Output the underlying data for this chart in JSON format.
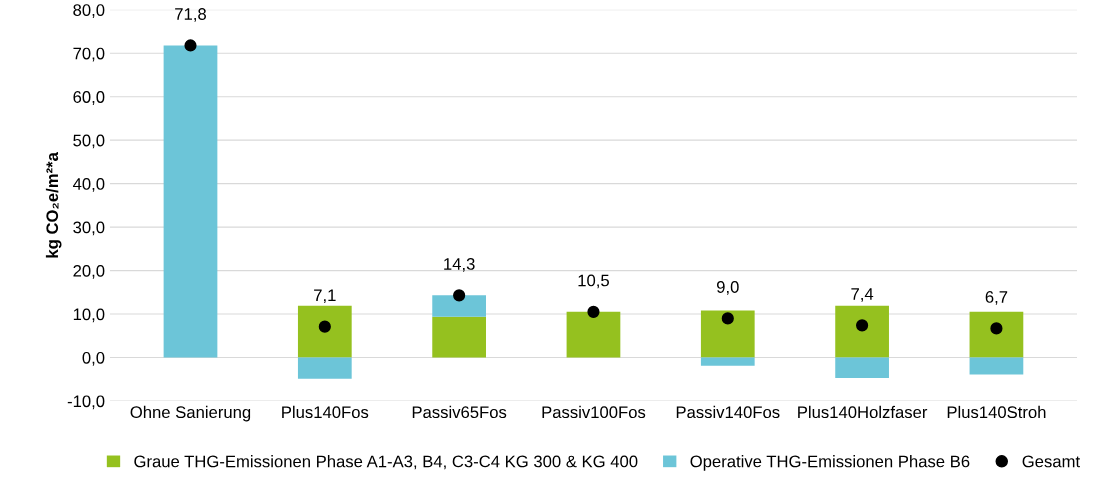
{
  "chart_data": {
    "type": "bar",
    "stacked": true,
    "ylabel": "kg CO₂e/m²*a",
    "categories": [
      "Ohne Sanierung",
      "Plus140Fos",
      "Passiv65Fos",
      "Passiv100Fos",
      "Passiv140Fos",
      "Plus140Holzfaser",
      "Plus140Stroh"
    ],
    "series": [
      {
        "name": "Graue THG-Emissionen Phase A1-A3, B4, C3-C4 KG 300 & KG 400",
        "color": "#95c11f",
        "values": [
          null,
          11.9,
          9.4,
          10.5,
          10.8,
          11.9,
          10.5
        ]
      },
      {
        "name": "Operative THG-Emissionen Phase B6",
        "color": "#6cc5d8",
        "values": [
          71.8,
          -4.9,
          4.9,
          null,
          -1.9,
          -4.7,
          -3.9
        ]
      },
      {
        "name": "Gesamt",
        "type": "scatter",
        "color": "#000000",
        "marker": "circle",
        "values": [
          71.8,
          7.1,
          14.3,
          10.5,
          9.0,
          7.4,
          6.7
        ],
        "value_labels": [
          "71,8",
          "7,1",
          "14,3",
          "10,5",
          "9,0",
          "7,4",
          "6,7"
        ]
      }
    ],
    "ylim": [
      -10,
      80
    ],
    "yticks": [
      {
        "value": -10,
        "label": "-10,0"
      },
      {
        "value": 0,
        "label": "0,0"
      },
      {
        "value": 10,
        "label": "10,0"
      },
      {
        "value": 20,
        "label": "20,0"
      },
      {
        "value": 30,
        "label": "30,0"
      },
      {
        "value": 40,
        "label": "40,0"
      },
      {
        "value": 50,
        "label": "50,0"
      },
      {
        "value": 60,
        "label": "60,0"
      },
      {
        "value": 70,
        "label": "70,0"
      },
      {
        "value": 80,
        "label": "80,0"
      }
    ],
    "grid": "y",
    "legend": "bottom"
  }
}
